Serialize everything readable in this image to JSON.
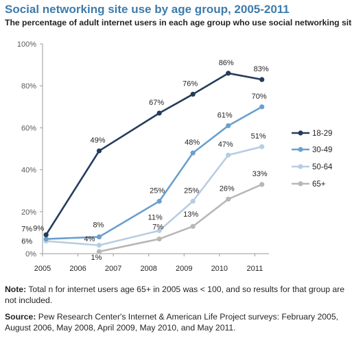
{
  "header": {
    "title": "Social networking site use by age group, 2005-2011",
    "subtitle": "The percentage of adult internet users in each age group who use social networking sites"
  },
  "footer": {
    "note_label": "Note:",
    "note_text": " Total n for internet users age 65+ in 2005 was < 100, and so results for that group are not included.",
    "source_label": "Source:",
    "source_text": " Pew Research Center's Internet & American Life Project surveys: February 2005, August 2006, May 2008, April 2009, May 2010, and May 2011."
  },
  "chart_data": {
    "type": "line",
    "ylim": [
      0,
      100
    ],
    "yticks": [
      0,
      20,
      40,
      60,
      80,
      100
    ],
    "ytick_labels": [
      "0%",
      "20%",
      "40%",
      "60%",
      "80%",
      "100%"
    ],
    "xlim": [
      2005,
      2011.4
    ],
    "xticks": [
      2005,
      2006,
      2007,
      2008,
      2009,
      2010,
      2011
    ],
    "xtick_labels": [
      "2005",
      "2006",
      "2007",
      "2008",
      "2009",
      "2010",
      "2011"
    ],
    "grid": false,
    "legend_position": "right",
    "series": [
      {
        "name": "18-29",
        "color": "#243c5c",
        "x": [
          2005.1,
          2006.6,
          2008.3,
          2009.25,
          2010.25,
          2011.2
        ],
        "y": [
          9,
          49,
          67,
          76,
          86,
          83
        ],
        "labels": [
          "9%",
          "49%",
          "67%",
          "76%",
          "86%",
          "83%"
        ]
      },
      {
        "name": "30-49",
        "color": "#6b9fcd",
        "x": [
          2005.1,
          2006.6,
          2008.3,
          2009.25,
          2010.25,
          2011.2
        ],
        "y": [
          7,
          8,
          25,
          48,
          61,
          70
        ],
        "labels": [
          "7%",
          "8%",
          "25%",
          "48%",
          "61%",
          "70%"
        ]
      },
      {
        "name": "50-64",
        "color": "#b7cde4",
        "x": [
          2005.1,
          2006.6,
          2008.3,
          2009.25,
          2010.25,
          2011.2
        ],
        "y": [
          6,
          4,
          11,
          25,
          47,
          51
        ],
        "labels": [
          "6%",
          "4%",
          "11%",
          "25%",
          "47%",
          "51%"
        ]
      },
      {
        "name": "65+",
        "color": "#b8b7b5",
        "x": [
          2006.6,
          2008.3,
          2009.25,
          2010.25,
          2011.2
        ],
        "y": [
          1,
          7,
          13,
          26,
          33
        ],
        "labels": [
          "1%",
          "7%",
          "13%",
          "26%",
          "33%"
        ]
      }
    ]
  }
}
